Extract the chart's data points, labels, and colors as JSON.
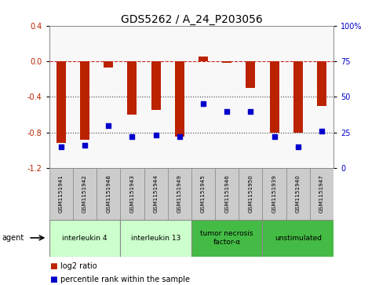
{
  "title": "GDS5262 / A_24_P203056",
  "samples": [
    "GSM1151941",
    "GSM1151942",
    "GSM1151948",
    "GSM1151943",
    "GSM1151944",
    "GSM1151949",
    "GSM1151945",
    "GSM1151946",
    "GSM1151950",
    "GSM1151939",
    "GSM1151940",
    "GSM1151947"
  ],
  "log2_ratio": [
    -0.92,
    -0.88,
    -0.07,
    -0.6,
    -0.55,
    -0.85,
    0.05,
    -0.02,
    -0.3,
    -0.8,
    -0.8,
    -0.5
  ],
  "percentile_rank": [
    15,
    16,
    30,
    22,
    23,
    22,
    45,
    40,
    40,
    22,
    15,
    26
  ],
  "agent_groups": [
    {
      "label": "interleukin 4",
      "start": 0,
      "end": 3,
      "color": "#ccffcc"
    },
    {
      "label": "interleukin 13",
      "start": 3,
      "end": 6,
      "color": "#ccffcc"
    },
    {
      "label": "tumor necrosis\nfactor-α",
      "start": 6,
      "end": 9,
      "color": "#44bb44"
    },
    {
      "label": "unstimulated",
      "start": 9,
      "end": 12,
      "color": "#44bb44"
    }
  ],
  "ylim_left": [
    -1.2,
    0.4
  ],
  "ylim_right": [
    0,
    100
  ],
  "yticks_left": [
    -1.2,
    -0.8,
    -0.4,
    0.0,
    0.4
  ],
  "yticks_right": [
    0,
    25,
    50,
    75,
    100
  ],
  "bar_color": "#bb2200",
  "scatter_color": "#0000cc",
  "hline_color": "#cc2222",
  "dotted_line_color": "#444444",
  "background_color": "#ffffff",
  "agent_label": "agent",
  "legend_log2": "log2 ratio",
  "legend_pct": "percentile rank within the sample",
  "title_fontsize": 10,
  "tick_fontsize": 7,
  "bar_width": 0.4
}
